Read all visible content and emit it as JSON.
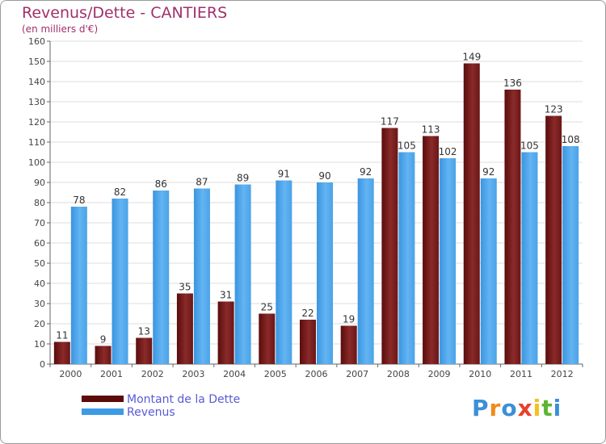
{
  "header": {
    "title": "Revenus/Dette - CANTIERS",
    "subtitle": "(en milliers d'€)"
  },
  "chart_data": {
    "type": "bar",
    "categories": [
      "2000",
      "2001",
      "2002",
      "2003",
      "2004",
      "2005",
      "2006",
      "2007",
      "2008",
      "2009",
      "2010",
      "2011",
      "2012"
    ],
    "series": [
      {
        "name": "Montant de la Dette",
        "values": [
          11,
          9,
          13,
          35,
          31,
          25,
          22,
          19,
          117,
          113,
          149,
          136,
          123
        ],
        "color": "#7a1a1a"
      },
      {
        "name": "Revenus",
        "values": [
          78,
          82,
          86,
          87,
          89,
          91,
          90,
          92,
          105,
          102,
          92,
          105,
          108
        ],
        "color": "#4aa3e8"
      }
    ],
    "ylim": [
      0,
      160
    ],
    "yticks": [
      0,
      10,
      20,
      30,
      40,
      50,
      60,
      70,
      80,
      90,
      100,
      110,
      120,
      130,
      140,
      150,
      160
    ],
    "grid": true,
    "legend_position": "bottom-left",
    "data_labels": true
  },
  "legend": {
    "items": [
      {
        "label": "Montant de la Dette",
        "color": "#5c0a0a"
      },
      {
        "label": "Revenus",
        "color": "#3d9be6"
      }
    ]
  },
  "brand": {
    "letters": [
      "P",
      "r",
      "o",
      "x",
      "i",
      "t",
      "i"
    ],
    "colors": [
      "#3b8fd8",
      "#f08a1a",
      "#3b8fd8",
      "#e8402a",
      "#f2c21a",
      "#5cb531",
      "#3b8fd8"
    ]
  }
}
